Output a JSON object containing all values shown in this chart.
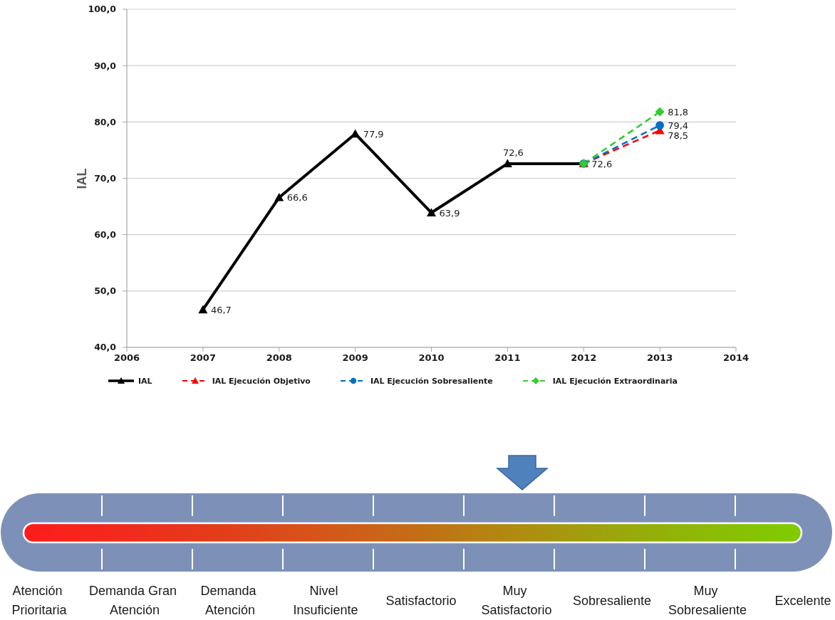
{
  "chart_data": [
    {
      "type": "line",
      "ylabel": "IAL",
      "xlim": [
        2006,
        2014
      ],
      "xticks": [
        2006,
        2007,
        2008,
        2009,
        2010,
        2011,
        2012,
        2013,
        2014
      ],
      "ylim": [
        40,
        100
      ],
      "yticks": [
        {
          "value": 40,
          "label": "40,0"
        },
        {
          "value": 50,
          "label": "50,0"
        },
        {
          "value": 60,
          "label": "60,0"
        },
        {
          "value": 70,
          "label": "70,0"
        },
        {
          "value": 80,
          "label": "80,0"
        },
        {
          "value": 90,
          "label": "90,0"
        },
        {
          "value": 100,
          "label": "100,0"
        }
      ],
      "grid": "y",
      "legend": "bottom",
      "series": [
        {
          "name": "IAL",
          "color": "#000000",
          "marker": "triangle",
          "line_style": "solid",
          "x": [
            2007,
            2008,
            2009,
            2010,
            2011,
            2012
          ],
          "values": [
            46.7,
            66.6,
            77.9,
            63.9,
            72.6,
            72.6
          ],
          "value_labels": [
            "46,7",
            "66,6",
            "77,9",
            "63,9",
            "72,6",
            "72,6"
          ]
        },
        {
          "name": "IAL Ejecución Objetivo",
          "color": "#ff0000",
          "marker": "triangle",
          "line_style": "dashed",
          "x": [
            2012,
            2013
          ],
          "values": [
            72.6,
            78.5
          ],
          "value_labels": [
            null,
            "78,5"
          ]
        },
        {
          "name": "IAL Ejecución Sobresaliente",
          "color": "#0070c0",
          "marker": "circle",
          "line_style": "dashed",
          "x": [
            2012,
            2013
          ],
          "values": [
            72.6,
            79.4
          ],
          "value_labels": [
            null,
            "79,4"
          ]
        },
        {
          "name": "IAL Ejecución Extraordinaria",
          "color": "#33cc33",
          "marker": "diamond",
          "line_style": "dashed",
          "x": [
            2012,
            2013
          ],
          "values": [
            72.6,
            81.8
          ],
          "value_labels": [
            null,
            "81,8"
          ]
        }
      ]
    },
    {
      "type": "other",
      "categories": [
        "Atención Prioritaria",
        "Demanda Gran Atención",
        "Demanda Atención",
        "Nivel Insuficiente",
        "Satisfactorio",
        "Muy Satisfactorio",
        "Sobresaliente",
        "Muy Sobresaliente",
        "Excelente"
      ],
      "colors": [
        "#ff1c1c",
        "#f22a1c",
        "#e33c1a",
        "#d6541a",
        "#c46c16",
        "#b08a10",
        "#9ca40c",
        "#8cba06",
        "#80cc00"
      ]
    }
  ]
}
